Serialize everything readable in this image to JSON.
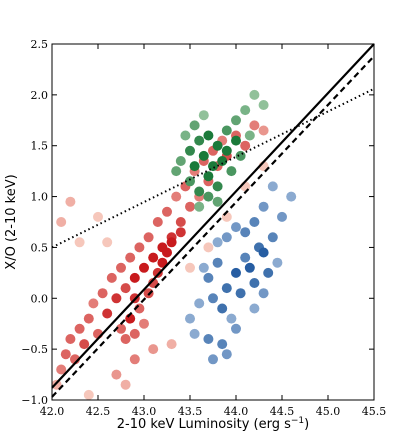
{
  "chart_data": {
    "type": "scatter",
    "title": "",
    "xlabel": "2-10 keV Luminosity (erg s",
    "xlabel_sup": "−1",
    "xlabel_close": ")",
    "ylabel": "X/O (2-10 keV)",
    "xlim": [
      42.0,
      45.5
    ],
    "ylim": [
      -1.0,
      2.5
    ],
    "xticks": [
      42.0,
      42.5,
      43.0,
      43.5,
      44.0,
      44.5,
      45.0,
      45.5
    ],
    "xtick_labels": [
      "42.0",
      "42.5",
      "43.0",
      "43.5",
      "44.0",
      "44.5",
      "45.0",
      "45.5"
    ],
    "yticks": [
      -1.0,
      -0.5,
      0.0,
      0.5,
      1.0,
      1.5,
      2.0,
      2.5
    ],
    "ytick_labels": [
      "−1.0",
      "−0.5",
      "0.0",
      "0.5",
      "1.0",
      "1.5",
      "2.0",
      "2.5"
    ],
    "grid": false,
    "legend": "none",
    "series": [
      {
        "color_light": "#fde0d2",
        "color_dark": "#c81a1d",
        "points": [
          [
            42.05,
            -0.85
          ],
          [
            42.1,
            -0.7
          ],
          [
            42.15,
            -0.55
          ],
          [
            42.2,
            -0.4
          ],
          [
            42.25,
            -0.6
          ],
          [
            42.3,
            -0.3
          ],
          [
            42.35,
            -0.45
          ],
          [
            42.4,
            -0.2
          ],
          [
            42.45,
            -0.05
          ],
          [
            42.5,
            -0.35
          ],
          [
            42.55,
            0.05
          ],
          [
            42.6,
            -0.15
          ],
          [
            42.65,
            0.2
          ],
          [
            42.7,
            0.0
          ],
          [
            42.75,
            0.3
          ],
          [
            42.8,
            0.1
          ],
          [
            42.85,
            0.4
          ],
          [
            42.9,
            0.2
          ],
          [
            42.95,
            0.5
          ],
          [
            43.0,
            0.3
          ],
          [
            43.05,
            0.6
          ],
          [
            43.1,
            0.4
          ],
          [
            43.15,
            0.75
          ],
          [
            43.2,
            0.5
          ],
          [
            43.25,
            0.85
          ],
          [
            43.3,
            0.6
          ],
          [
            43.35,
            1.0
          ],
          [
            43.4,
            0.75
          ],
          [
            43.45,
            1.1
          ],
          [
            43.5,
            0.9
          ],
          [
            43.55,
            1.25
          ],
          [
            43.6,
            1.0
          ],
          [
            43.65,
            1.35
          ],
          [
            43.7,
            1.15
          ],
          [
            43.75,
            1.45
          ],
          [
            43.8,
            1.3
          ],
          [
            43.85,
            1.55
          ],
          [
            43.9,
            1.4
          ],
          [
            44.0,
            1.6
          ],
          [
            44.1,
            1.5
          ],
          [
            44.2,
            1.7
          ],
          [
            44.3,
            1.65
          ],
          [
            42.3,
            0.55
          ],
          [
            42.1,
            0.75
          ],
          [
            42.5,
            0.8
          ],
          [
            42.6,
            0.55
          ],
          [
            42.2,
            0.95
          ],
          [
            42.4,
            -0.95
          ],
          [
            42.7,
            -0.75
          ],
          [
            42.9,
            -0.6
          ],
          [
            43.1,
            -0.5
          ],
          [
            43.3,
            -0.45
          ],
          [
            42.8,
            -0.85
          ],
          [
            43.5,
            0.3
          ],
          [
            43.7,
            0.5
          ],
          [
            43.9,
            0.8
          ],
          [
            44.1,
            1.1
          ],
          [
            44.3,
            1.3
          ],
          [
            42.9,
            -0.35
          ],
          [
            42.85,
            -0.2
          ],
          [
            42.95,
            -0.1
          ],
          [
            43.0,
            -0.25
          ],
          [
            43.05,
            0.05
          ],
          [
            43.1,
            0.15
          ],
          [
            43.15,
            0.25
          ],
          [
            42.8,
            -0.4
          ],
          [
            42.75,
            -0.3
          ],
          [
            42.9,
            0.0
          ],
          [
            43.2,
            0.35
          ],
          [
            43.25,
            0.45
          ],
          [
            43.3,
            0.55
          ],
          [
            43.4,
            0.65
          ]
        ]
      },
      {
        "color_light": "#d7ebd3",
        "color_dark": "#1b7a3a",
        "points": [
          [
            43.4,
            1.35
          ],
          [
            43.5,
            1.45
          ],
          [
            43.55,
            1.3
          ],
          [
            43.6,
            1.55
          ],
          [
            43.65,
            1.4
          ],
          [
            43.7,
            1.6
          ],
          [
            43.75,
            1.3
          ],
          [
            43.8,
            1.5
          ],
          [
            43.85,
            1.35
          ],
          [
            43.9,
            1.45
          ],
          [
            43.95,
            1.25
          ],
          [
            44.0,
            1.55
          ],
          [
            43.5,
            1.15
          ],
          [
            43.6,
            1.05
          ],
          [
            43.7,
            1.2
          ],
          [
            43.8,
            1.1
          ],
          [
            43.9,
            1.65
          ],
          [
            44.0,
            1.75
          ],
          [
            43.45,
            1.6
          ],
          [
            43.55,
            1.7
          ],
          [
            43.65,
            1.8
          ],
          [
            44.1,
            1.85
          ],
          [
            44.2,
            2.0
          ],
          [
            44.3,
            1.9
          ],
          [
            43.35,
            1.25
          ],
          [
            43.6,
            0.9
          ],
          [
            43.7,
            1.0
          ],
          [
            43.8,
            0.95
          ],
          [
            44.05,
            1.4
          ],
          [
            44.15,
            1.6
          ]
        ]
      },
      {
        "color_light": "#d6e4f3",
        "color_dark": "#0d4a96",
        "points": [
          [
            43.7,
            0.2
          ],
          [
            43.8,
            0.35
          ],
          [
            43.9,
            0.1
          ],
          [
            44.0,
            0.25
          ],
          [
            44.1,
            0.4
          ],
          [
            44.2,
            0.15
          ],
          [
            43.75,
            0.0
          ],
          [
            43.85,
            -0.1
          ],
          [
            43.95,
            -0.2
          ],
          [
            44.05,
            0.05
          ],
          [
            44.15,
            0.3
          ],
          [
            44.25,
            0.5
          ],
          [
            43.6,
            -0.05
          ],
          [
            43.65,
            0.3
          ],
          [
            43.8,
            0.55
          ],
          [
            43.9,
            0.6
          ],
          [
            44.0,
            0.7
          ],
          [
            44.1,
            0.65
          ],
          [
            44.2,
            0.75
          ],
          [
            44.3,
            0.45
          ],
          [
            44.4,
            0.6
          ],
          [
            44.35,
            0.25
          ],
          [
            43.5,
            -0.2
          ],
          [
            43.55,
            -0.35
          ],
          [
            43.7,
            -0.4
          ],
          [
            43.85,
            -0.45
          ],
          [
            44.0,
            -0.3
          ],
          [
            44.2,
            -0.1
          ],
          [
            44.3,
            0.05
          ],
          [
            44.45,
            0.35
          ],
          [
            44.5,
            0.8
          ],
          [
            44.6,
            1.0
          ],
          [
            44.4,
            1.1
          ],
          [
            44.3,
            0.9
          ],
          [
            43.9,
            -0.55
          ],
          [
            43.75,
            -0.6
          ]
        ]
      }
    ],
    "lines": [
      {
        "style": "solid",
        "x": [
          42.0,
          45.5
        ],
        "y": [
          -0.88,
          2.5
        ]
      },
      {
        "style": "dashed",
        "x": [
          42.0,
          45.5
        ],
        "y": [
          -0.97,
          2.38
        ]
      },
      {
        "style": "dotted",
        "x": [
          42.0,
          45.5
        ],
        "y": [
          0.5,
          2.06
        ]
      }
    ]
  }
}
